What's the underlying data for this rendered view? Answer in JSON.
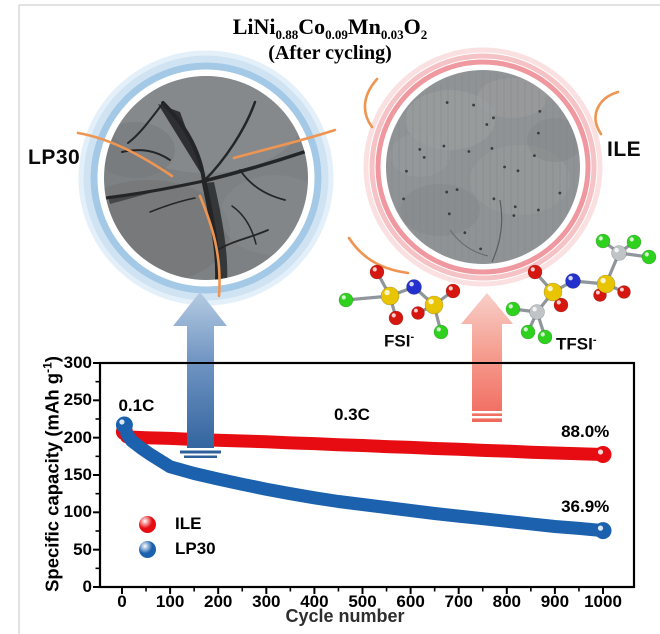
{
  "figure": {
    "title": {
      "f1": "LiNi",
      "s1": "0.88",
      "f2": "Co",
      "s2": "0.09",
      "f3": "Mn",
      "s3": "0.03",
      "f4": "O",
      "s4": "2",
      "line2": "(After cycling)"
    },
    "left_image_label": "LP30",
    "right_image_label": "ILE",
    "molecule_left": {
      "name": "FSI",
      "charge": "-"
    },
    "molecule_right": {
      "name": "TFSI",
      "charge": "-"
    }
  },
  "chart_data": {
    "type": "scatter",
    "xlabel": "Cycle number",
    "ylabel_pre": "Specific capacity (mAh g",
    "ylabel_sup": "-1",
    "ylabel_post": ")",
    "xlim": [
      0,
      1000
    ],
    "ylim": [
      0,
      300
    ],
    "xticks": [
      0,
      100,
      200,
      300,
      400,
      500,
      600,
      700,
      800,
      900,
      1000
    ],
    "yticks": [
      0,
      50,
      100,
      150,
      200,
      250,
      300
    ],
    "x_minor_step": 50,
    "y_minor_step": 25,
    "grid": false,
    "legend_position": "lower-left",
    "series": [
      {
        "name": "ILE",
        "color": "#e60c12",
        "initial_rate_point": [
          5,
          208
        ],
        "points": [
          [
            10,
            201
          ],
          [
            50,
            200
          ],
          [
            100,
            199
          ],
          [
            150,
            197.5
          ],
          [
            200,
            196.5
          ],
          [
            250,
            195.5
          ],
          [
            300,
            194.5
          ],
          [
            350,
            193
          ],
          [
            400,
            192
          ],
          [
            450,
            190.5
          ],
          [
            500,
            189.5
          ],
          [
            550,
            188
          ],
          [
            600,
            187
          ],
          [
            650,
            185.5
          ],
          [
            700,
            184.5
          ],
          [
            750,
            183
          ],
          [
            800,
            182
          ],
          [
            850,
            180.5
          ],
          [
            900,
            179.5
          ],
          [
            950,
            178.5
          ],
          [
            1000,
            177.5
          ]
        ]
      },
      {
        "name": "LP30",
        "color": "#1b61ae",
        "initial_rate_point": [
          5,
          217
        ],
        "points": [
          [
            10,
            205
          ],
          [
            20,
            196
          ],
          [
            40,
            186
          ],
          [
            60,
            177
          ],
          [
            80,
            169
          ],
          [
            100,
            161
          ],
          [
            150,
            152
          ],
          [
            200,
            144.5
          ],
          [
            250,
            137.5
          ],
          [
            300,
            131
          ],
          [
            350,
            125
          ],
          [
            400,
            119.5
          ],
          [
            450,
            114.5
          ],
          [
            500,
            110.5
          ],
          [
            550,
            106.5
          ],
          [
            600,
            102.5
          ],
          [
            650,
            98.5
          ],
          [
            700,
            95
          ],
          [
            750,
            91.5
          ],
          [
            800,
            88
          ],
          [
            850,
            84.5
          ],
          [
            900,
            81
          ],
          [
            950,
            78.5
          ],
          [
            1000,
            75.5
          ]
        ]
      }
    ],
    "annotations": [
      {
        "text": "0.1C",
        "x": 30,
        "y": 243
      },
      {
        "text": "0.3C",
        "x": 478,
        "y": 230
      },
      {
        "text": "88.0%",
        "x": 963,
        "y": 207
      },
      {
        "text": "36.9%",
        "x": 963,
        "y": 107
      }
    ]
  },
  "colors": {
    "ile_accent": "#e60c12",
    "lp30_accent": "#1b61ae",
    "ring_blue": "#a4c9e6",
    "ring_pink": "#f09aa0",
    "annotation_orange": "#ef9552"
  }
}
